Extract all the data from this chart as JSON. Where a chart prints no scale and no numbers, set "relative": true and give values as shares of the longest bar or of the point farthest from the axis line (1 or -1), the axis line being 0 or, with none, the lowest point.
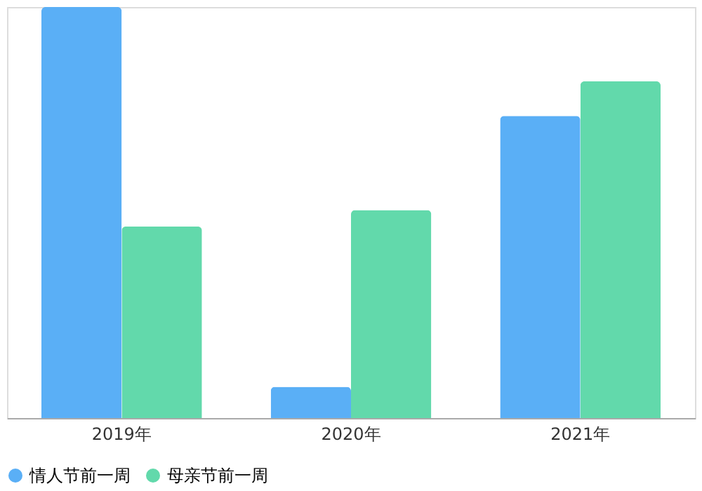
{
  "chart_data": {
    "type": "bar",
    "relative": true,
    "categories": [
      "2019年",
      "2020年",
      "2021年"
    ],
    "series": [
      {
        "name": "情人节前一周",
        "color": "#5aaff6",
        "values": [
          1,
          0.076,
          0.735
        ]
      },
      {
        "name": "母亲节前一周",
        "color": "#62d9ab",
        "values": [
          0.466,
          0.506,
          0.819
        ]
      }
    ],
    "legend": "bottom"
  }
}
